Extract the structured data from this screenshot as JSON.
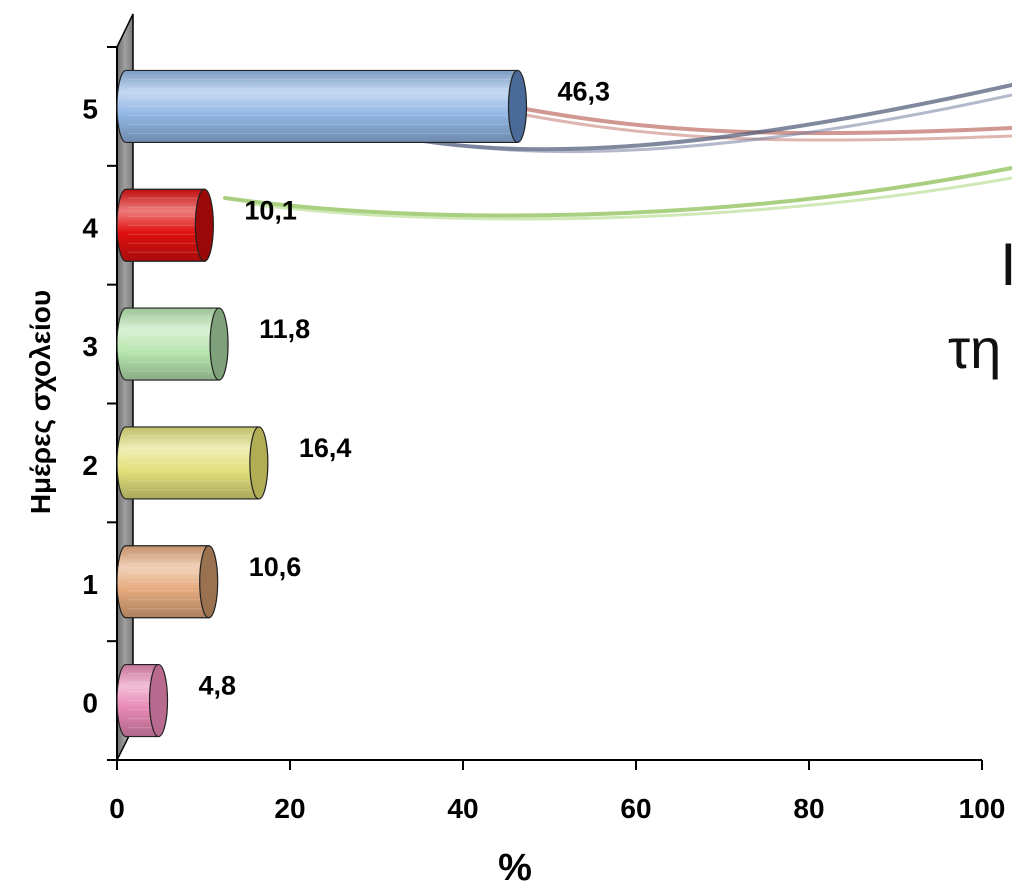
{
  "chart_data": {
    "type": "bar",
    "orientation": "horizontal",
    "categories": [
      "0",
      "1",
      "2",
      "3",
      "4",
      "5"
    ],
    "values": [
      4.8,
      10.6,
      16.4,
      11.8,
      10.1,
      46.3
    ],
    "value_labels": [
      "4,8",
      "10,6",
      "16,4",
      "11,8",
      "10,1",
      "46,3"
    ],
    "xlabel": "%",
    "ylabel": "Ημέρες σχολείου",
    "xlim": [
      0,
      100
    ],
    "xticks": [
      "0",
      "20",
      "40",
      "60",
      "80",
      "100"
    ],
    "grid": false,
    "legend": "none",
    "colors": [
      "#e889b5",
      "#e6ab7e",
      "#e2e07a",
      "#b8e6b0",
      "#e01010",
      "#93b8e6"
    ],
    "cap_colors": [
      "#b86a8f",
      "#9a7250",
      "#b0ad55",
      "#7ea07a",
      "#9a0808",
      "#4a6a9a"
    ]
  },
  "background_text": {
    "partial_title_1": "Ι",
    "partial_title_2": "τη"
  }
}
